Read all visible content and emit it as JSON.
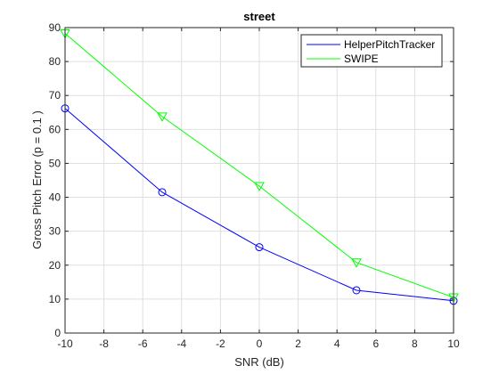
{
  "chart_data": {
    "type": "line",
    "title": "street",
    "xlabel": "SNR (dB)",
    "ylabel": "Gross Pitch Error (p = 0.1 )",
    "xlim": [
      -10,
      10
    ],
    "ylim": [
      0,
      90
    ],
    "xticks": [
      -10,
      -8,
      -6,
      -4,
      -2,
      0,
      2,
      4,
      6,
      8,
      10
    ],
    "yticks": [
      0,
      10,
      20,
      30,
      40,
      50,
      60,
      70,
      80,
      90
    ],
    "grid": true,
    "legend_position": "top-right",
    "x": [
      -10,
      -5,
      0,
      5,
      10
    ],
    "series": [
      {
        "name": "HelperPitchTracker",
        "color": "#0000ff",
        "marker": "circle",
        "values": [
          66.2,
          41.5,
          25.3,
          12.6,
          9.5
        ]
      },
      {
        "name": "SWIPE",
        "color": "#00ff00",
        "marker": "triangle-down",
        "values": [
          88.3,
          63.8,
          43.3,
          20.8,
          10.5
        ]
      }
    ]
  }
}
